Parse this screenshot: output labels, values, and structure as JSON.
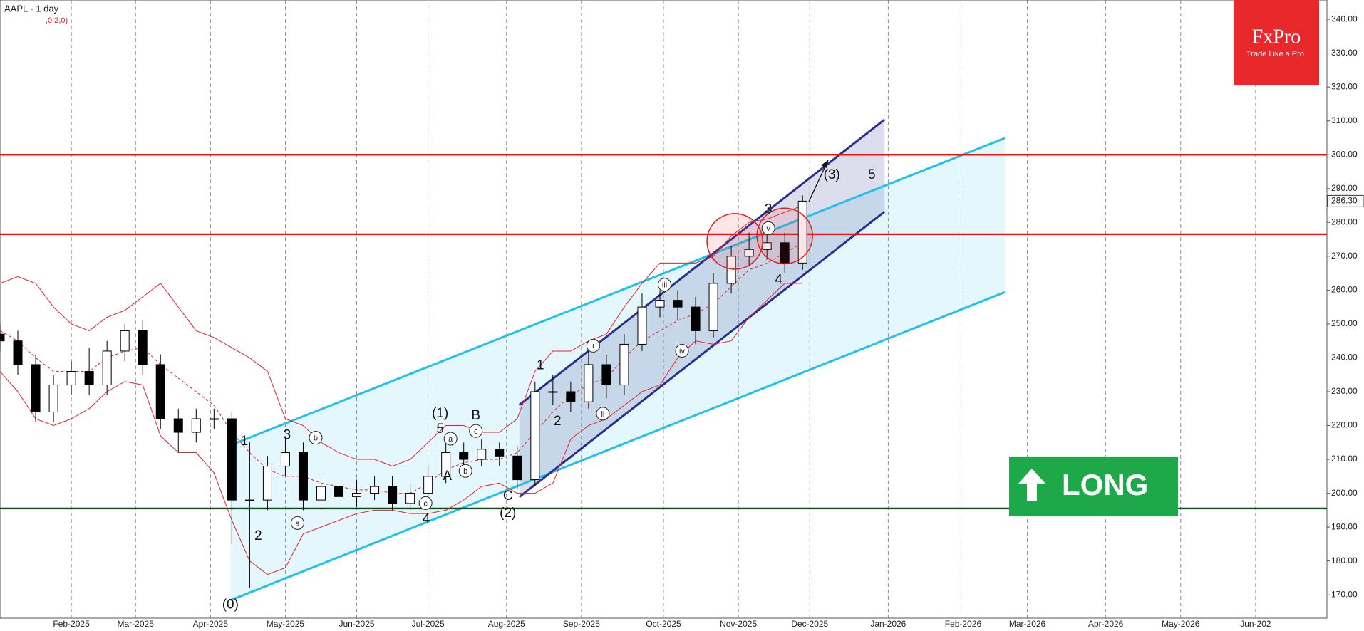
{
  "chart_data": {
    "type": "candlestick",
    "title": "AAPL - 1 day",
    "subtitle": ",0,2,0)",
    "x": [
      0,
      5,
      10,
      15,
      20,
      25,
      30,
      35,
      40,
      45,
      50,
      55,
      60,
      65,
      70,
      75,
      80,
      85,
      90,
      95,
      100,
      105,
      110,
      115,
      120,
      125,
      130,
      135,
      140,
      145,
      150,
      155,
      160,
      165,
      170,
      175,
      180,
      185,
      190,
      195,
      200,
      205,
      210,
      215,
      220,
      225
    ],
    "open": [
      247,
      245,
      238,
      224,
      232,
      236,
      232,
      242,
      248,
      238,
      222,
      218,
      222,
      222,
      198,
      198,
      208,
      212,
      198,
      202,
      199,
      200,
      202,
      197,
      200,
      205,
      212,
      210,
      213,
      211,
      204,
      230,
      230,
      227,
      238,
      232,
      244,
      255,
      257,
      255,
      248,
      262,
      270,
      272,
      274,
      268
    ],
    "high": [
      250,
      248,
      241,
      235,
      239,
      243,
      245,
      250,
      251,
      241,
      225,
      225,
      225,
      224,
      215,
      211,
      216,
      215,
      205,
      206,
      204,
      205,
      205,
      203,
      208,
      216,
      215,
      216,
      215,
      214,
      233,
      235,
      233,
      242,
      241,
      247,
      259,
      260,
      260,
      258,
      265,
      273,
      277,
      278,
      277,
      288
    ],
    "low": [
      242,
      235,
      221,
      221,
      229,
      229,
      229,
      239,
      235,
      219,
      212,
      215,
      219,
      185,
      172,
      195,
      205,
      195,
      195,
      196,
      196,
      198,
      195,
      195,
      198,
      203,
      207,
      208,
      208,
      201,
      202,
      226,
      224,
      225,
      228,
      229,
      242,
      252,
      251,
      244,
      246,
      259,
      267,
      269,
      265,
      266
    ],
    "close": [
      245,
      238,
      224,
      232,
      236,
      232,
      242,
      248,
      238,
      222,
      218,
      222,
      222,
      198,
      198,
      208,
      212,
      198,
      202,
      199,
      200,
      202,
      197,
      200,
      205,
      212,
      210,
      213,
      211,
      204,
      230,
      230,
      227,
      238,
      232,
      244,
      255,
      257,
      255,
      248,
      262,
      270,
      272,
      274,
      268,
      286.3
    ],
    "up_color": "#ffffff",
    "down_color": "#000000",
    "bollinger": {
      "color": "#e8202a",
      "upper": [
        262,
        264,
        262,
        255,
        250,
        248,
        252,
        254,
        258,
        262,
        255,
        248,
        246,
        243,
        240,
        236,
        222,
        220,
        215,
        212,
        210,
        210,
        208,
        210,
        215,
        220,
        220,
        218,
        218,
        222,
        236,
        242,
        242,
        245,
        247,
        255,
        262,
        268,
        268,
        268,
        270,
        276,
        280,
        281,
        283,
        285
      ],
      "middle": [
        248,
        245,
        240,
        236,
        236,
        236,
        240,
        242,
        243,
        238,
        234,
        230,
        226,
        218,
        212,
        207,
        205,
        205,
        203,
        202,
        201,
        201,
        200,
        200,
        203,
        207,
        209,
        210,
        210,
        212,
        218,
        224,
        229,
        232,
        234,
        240,
        245,
        248,
        251,
        253,
        256,
        261,
        266,
        268,
        271,
        274
      ],
      "lower": [
        236,
        230,
        222,
        220,
        222,
        225,
        230,
        233,
        232,
        217,
        212,
        212,
        206,
        192,
        180,
        176,
        178,
        188,
        190,
        192,
        194,
        195,
        195,
        194,
        194,
        195,
        198,
        202,
        203,
        200,
        200,
        203,
        216,
        220,
        222,
        226,
        230,
        232,
        240,
        245,
        244,
        245,
        252,
        257,
        262,
        262
      ]
    },
    "channels": [
      {
        "x": [
          64.6,
          281.7
        ],
        "upper": [
          214.2,
          304.9
        ],
        "lower": [
          168.4,
          259.4
        ],
        "color": "#22c0ea"
      },
      {
        "x": [
          145.6,
          248
        ],
        "upper": [
          226.1,
          310.4
        ],
        "lower": [
          198.9,
          283.2
        ],
        "color": "#2b2f8f"
      }
    ],
    "hlines": [
      {
        "value": 300,
        "color": "#f01010"
      },
      {
        "value": 276.5,
        "color": "#f01010"
      },
      {
        "value": 195.5,
        "color": "#0b4a12"
      }
    ],
    "circles": [
      {
        "x": 206,
        "y": 274.4
      },
      {
        "x": 220,
        "y": 276
      }
    ],
    "waves": [
      {
        "label": "(0)",
        "x": 64.6,
        "y": 167.0
      },
      {
        "label": "1",
        "x": 68.5,
        "y": 215.3
      },
      {
        "label": "2",
        "x": 72.4,
        "y": 187.3
      },
      {
        "label": "3",
        "x": 80.5,
        "y": 217.1
      },
      {
        "label": "4",
        "x": 119.5,
        "y": 192.2
      },
      {
        "label": "5",
        "x": 123.4,
        "y": 218.9
      },
      {
        "label": "(1)",
        "x": 123.4,
        "y": 223.5
      },
      {
        "label": "A",
        "x": 125.4,
        "y": 205.0
      },
      {
        "label": "B",
        "x": 133.4,
        "y": 222.8
      },
      {
        "label": "C",
        "x": 142.4,
        "y": 199.1
      },
      {
        "label": "(2)",
        "x": 142.4,
        "y": 194.0
      },
      {
        "label": "1",
        "x": 151.5,
        "y": 237.7
      },
      {
        "label": "2",
        "x": 156.3,
        "y": 221.2
      },
      {
        "label": "3",
        "x": 215.4,
        "y": 283.7
      },
      {
        "label": "4",
        "x": 218.3,
        "y": 262.9
      },
      {
        "label": "(3)",
        "x": 233.2,
        "y": 294.0
      },
      {
        "label": "5",
        "x": 244.4,
        "y": 294.0
      }
    ],
    "circled": [
      {
        "label": "a",
        "x": 83.4,
        "y": 191.2
      },
      {
        "label": "b",
        "x": 88.5,
        "y": 216.4
      },
      {
        "label": "c",
        "x": 119.3,
        "y": 197.1
      },
      {
        "label": "a",
        "x": 126.3,
        "y": 216.1
      },
      {
        "label": "b",
        "x": 130.5,
        "y": 206.6
      },
      {
        "label": "c",
        "x": 133.4,
        "y": 218.4
      },
      {
        "label": "i",
        "x": 166.3,
        "y": 243.6
      },
      {
        "label": "ii",
        "x": 169.0,
        "y": 223.5
      },
      {
        "label": "iii",
        "x": 186.3,
        "y": 261.6
      },
      {
        "label": "iv",
        "x": 191.2,
        "y": 242.1
      },
      {
        "label": "v",
        "x": 215.4,
        "y": 278.3
      }
    ],
    "last_price": {
      "value": 286.3,
      "label": "286.30"
    },
    "xlim": [
      0,
      372
    ],
    "ylim": [
      163.1,
      345.7
    ],
    "xticks": [
      {
        "value": 20,
        "label": "Feb-2025"
      },
      {
        "value": 38,
        "label": "Mar-2025"
      },
      {
        "value": 59,
        "label": "Apr-2025"
      },
      {
        "value": 80,
        "label": "May-2025"
      },
      {
        "value": 100,
        "label": "Jun-2025"
      },
      {
        "value": 120,
        "label": "Jul-2025"
      },
      {
        "value": 142,
        "label": "Aug-2025"
      },
      {
        "value": 163,
        "label": "Sep-2025"
      },
      {
        "value": 186,
        "label": "Oct-2025"
      },
      {
        "value": 207,
        "label": "Nov-2025"
      },
      {
        "value": 227,
        "label": "Dec-2025"
      },
      {
        "value": 249,
        "label": "Jan-2026"
      },
      {
        "value": 270,
        "label": "Feb-2026"
      },
      {
        "value": 288,
        "label": "Mar-2026"
      },
      {
        "value": 310,
        "label": "Apr-2026"
      },
      {
        "value": 331,
        "label": "May-2026"
      },
      {
        "value": 352,
        "label": "Jun-202"
      }
    ],
    "yticks": [
      {
        "value": 170,
        "label": "170.00"
      },
      {
        "value": 180,
        "label": "180.00"
      },
      {
        "value": 190,
        "label": "190.00"
      },
      {
        "value": 200,
        "label": "200.00"
      },
      {
        "value": 210,
        "label": "210.00"
      },
      {
        "value": 220,
        "label": "220.00"
      },
      {
        "value": 230,
        "label": "230.00"
      },
      {
        "value": 240,
        "label": "240.00"
      },
      {
        "value": 250,
        "label": "250.00"
      },
      {
        "value": 260,
        "label": "260.00"
      },
      {
        "value": 270,
        "label": "270.00"
      },
      {
        "value": 280,
        "label": "280.00"
      },
      {
        "value": 290,
        "label": "290.00"
      },
      {
        "value": 300,
        "label": "300.00"
      },
      {
        "value": 310,
        "label": "310.00"
      },
      {
        "value": 320,
        "label": "320.00"
      },
      {
        "value": 330,
        "label": "330.00"
      },
      {
        "value": 340,
        "label": "340.00"
      }
    ],
    "grid": "x"
  },
  "logo": {
    "name": "FxPro",
    "tagline": "Trade Like a Pro"
  },
  "signal": {
    "label": "LONG"
  }
}
